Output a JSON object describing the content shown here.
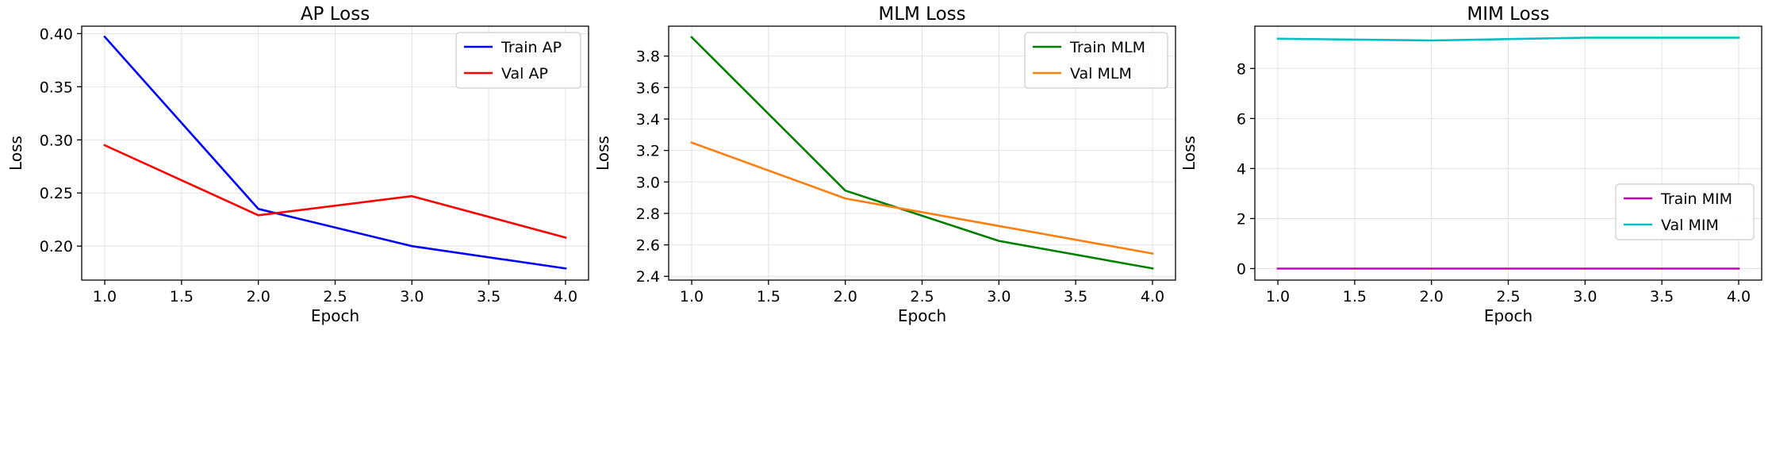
{
  "chart_data": [
    {
      "type": "line",
      "title": "AP Loss",
      "xlabel": "Epoch",
      "ylabel": "Loss",
      "x": [
        1.0,
        2.0,
        3.0,
        4.0
      ],
      "xlim": [
        0.85,
        4.15
      ],
      "ylim": [
        0.168,
        0.407
      ],
      "xticks": [
        1.0,
        1.5,
        2.0,
        2.5,
        3.0,
        3.5,
        4.0
      ],
      "xtick_labels": [
        "1.0",
        "1.5",
        "2.0",
        "2.5",
        "3.0",
        "3.5",
        "4.0"
      ],
      "yticks": [
        0.2,
        0.25,
        0.3,
        0.35,
        0.4
      ],
      "ytick_labels": [
        "0.20",
        "0.25",
        "0.30",
        "0.35",
        "0.40"
      ],
      "grid": true,
      "legend_position": "top-right",
      "series": [
        {
          "name": "Train AP",
          "color": "#0000ff",
          "values": [
            0.397,
            0.235,
            0.2,
            0.179
          ]
        },
        {
          "name": "Val AP",
          "color": "#ff0000",
          "values": [
            0.295,
            0.229,
            0.247,
            0.208
          ]
        }
      ]
    },
    {
      "type": "line",
      "title": "MLM Loss",
      "xlabel": "Epoch",
      "ylabel": "Loss",
      "x": [
        1.0,
        2.0,
        3.0,
        4.0
      ],
      "xlim": [
        0.85,
        4.15
      ],
      "ylim": [
        2.376,
        3.99
      ],
      "xticks": [
        1.0,
        1.5,
        2.0,
        2.5,
        3.0,
        3.5,
        4.0
      ],
      "xtick_labels": [
        "1.0",
        "1.5",
        "2.0",
        "2.5",
        "3.0",
        "3.5",
        "4.0"
      ],
      "yticks": [
        2.4,
        2.6,
        2.8,
        3.0,
        3.2,
        3.4,
        3.6,
        3.8
      ],
      "ytick_labels": [
        "2.4",
        "2.6",
        "2.8",
        "3.0",
        "3.2",
        "3.4",
        "3.6",
        "3.8"
      ],
      "grid": true,
      "legend_position": "top-right",
      "series": [
        {
          "name": "Train MLM",
          "color": "#008000",
          "values": [
            3.92,
            2.945,
            2.625,
            2.45
          ]
        },
        {
          "name": "Val MLM",
          "color": "#ff7f0e",
          "values": [
            3.25,
            2.895,
            2.72,
            2.545
          ]
        }
      ]
    },
    {
      "type": "line",
      "title": "MIM Loss",
      "xlabel": "Epoch",
      "ylabel": "Loss",
      "x": [
        1.0,
        2.0,
        3.0,
        4.0
      ],
      "xlim": [
        0.85,
        4.15
      ],
      "ylim": [
        -0.46,
        9.69
      ],
      "xticks": [
        1.0,
        1.5,
        2.0,
        2.5,
        3.0,
        3.5,
        4.0
      ],
      "xtick_labels": [
        "1.0",
        "1.5",
        "2.0",
        "2.5",
        "3.0",
        "3.5",
        "4.0"
      ],
      "yticks": [
        0,
        2,
        4,
        6,
        8
      ],
      "ytick_labels": [
        "0",
        "2",
        "4",
        "6",
        "8"
      ],
      "grid": true,
      "legend_position": "center-right",
      "series": [
        {
          "name": "Train MIM",
          "color": "#bf00bf",
          "values": [
            0.0,
            0.0,
            0.0,
            0.0
          ]
        },
        {
          "name": "Val MIM",
          "color": "#00bfbf",
          "values": [
            9.19,
            9.12,
            9.23,
            9.23
          ]
        }
      ]
    }
  ]
}
